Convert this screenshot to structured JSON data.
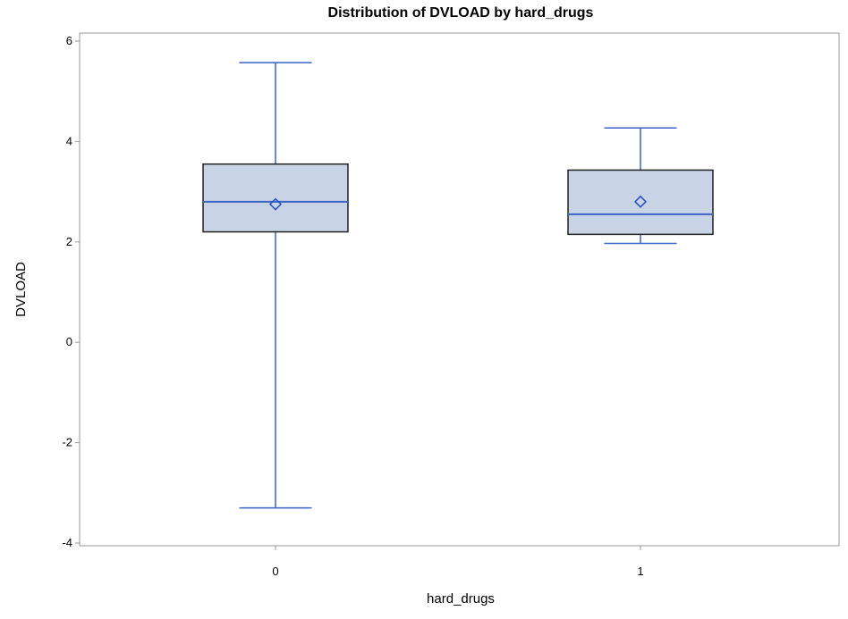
{
  "chart_data": {
    "type": "box",
    "title": "Distribution of DVLOAD by hard_drugs",
    "xlabel": "hard_drugs",
    "ylabel": "DVLOAD",
    "ylim": [
      -4,
      6
    ],
    "yticks": [
      -4,
      -2,
      0,
      2,
      4,
      6
    ],
    "categories": [
      "0",
      "1"
    ],
    "boxes": [
      {
        "category": "0",
        "min": -3.3,
        "q1": 2.2,
        "median": 2.8,
        "q3": 3.55,
        "max": 5.57,
        "mean": 2.75
      },
      {
        "category": "1",
        "min": 1.97,
        "q1": 2.15,
        "median": 2.55,
        "q3": 3.43,
        "max": 4.27,
        "mean": 2.8
      }
    ],
    "grid": false,
    "colors": {
      "box_fill": "#c8d4e6",
      "box_border": "#222222",
      "whisker": "#3a62c4",
      "median": "#3a62c4",
      "mean_marker": "#2050c0",
      "frame": "#999999"
    }
  }
}
